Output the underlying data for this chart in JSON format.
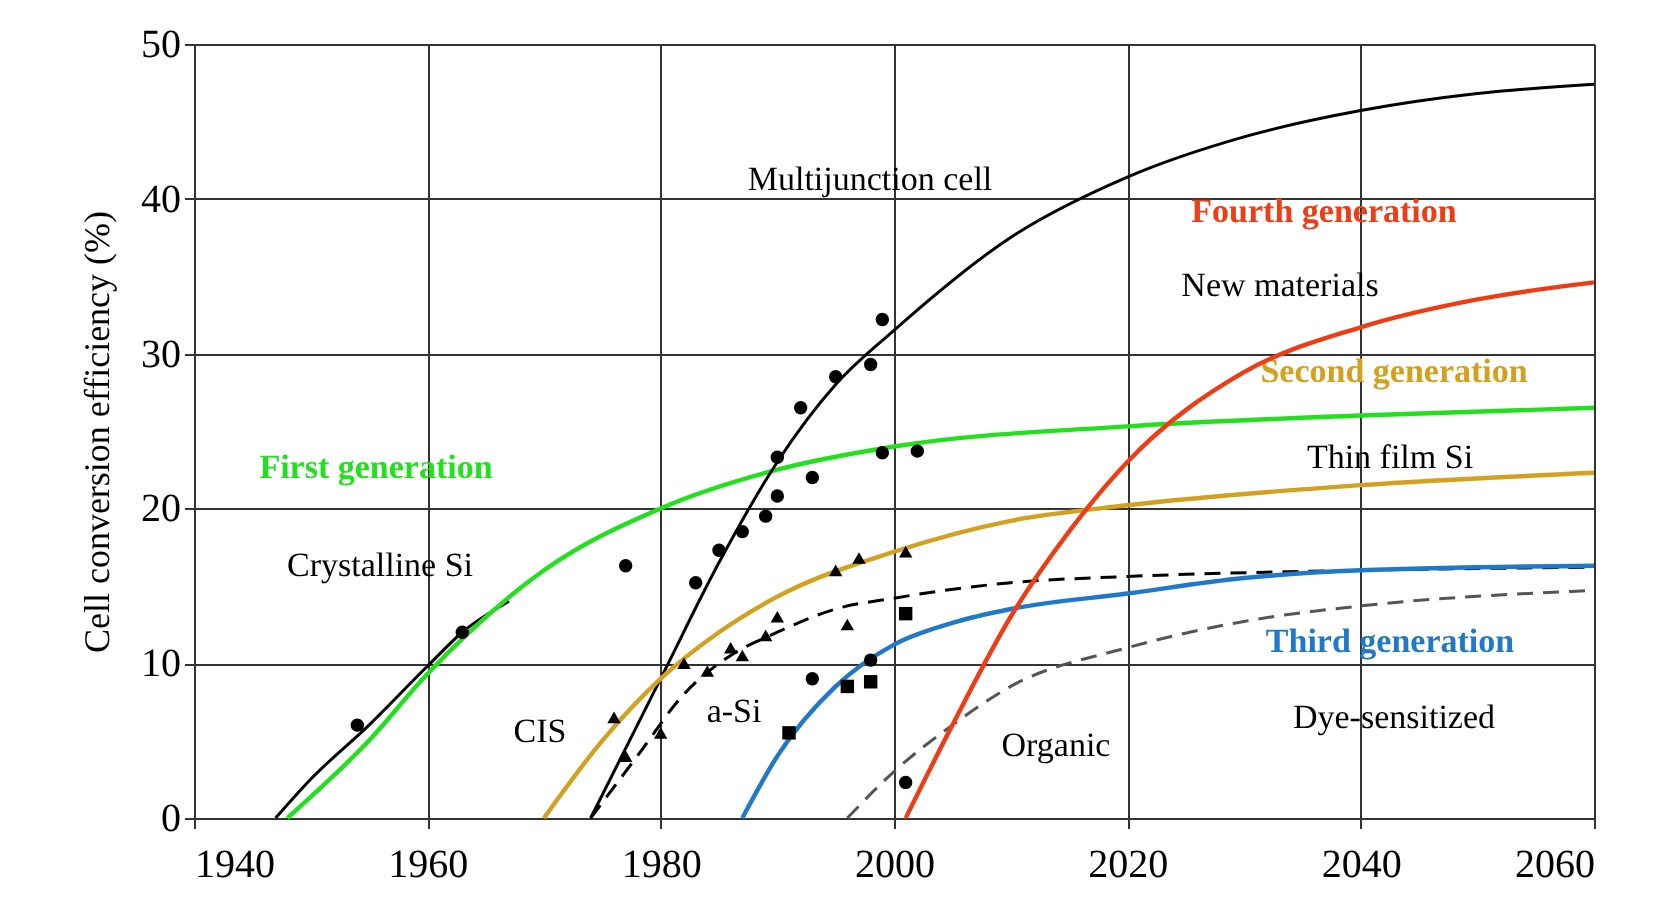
{
  "chart_data": {
    "type": "line",
    "ylabel": "Cell conversion efficiency (%)",
    "xlim": [
      1940,
      2060
    ],
    "ylim": [
      0,
      50
    ],
    "xticks": [
      1940,
      1960,
      1980,
      2000,
      2020,
      2040,
      2060
    ],
    "yticks": [
      0,
      10,
      20,
      30,
      40,
      50
    ],
    "grid": true,
    "series": [
      {
        "color": "#000000",
        "line_style": "solid",
        "marker": "none",
        "x": [
          1947,
          1950,
          1955,
          1960,
          1963,
          1967
        ],
        "values": [
          0,
          2.5,
          6,
          9.8,
          12,
          14
        ]
      },
      {
        "name": "First generation",
        "color": "#22e01e",
        "line_style": "solid",
        "marker": "none",
        "x": [
          1948,
          1955,
          1960,
          1970,
          1980,
          1990,
          2000,
          2020,
          2040,
          2060
        ],
        "values": [
          0,
          5,
          9.3,
          16,
          20,
          22.5,
          24,
          25.3,
          26,
          26.5
        ]
      },
      {
        "color": "#000000",
        "line_style": "solid",
        "marker": "none",
        "x": [
          1974,
          1980,
          1985,
          1990,
          1995,
          2000,
          2010,
          2020,
          2030,
          2040,
          2050,
          2060
        ],
        "values": [
          0,
          9,
          16.5,
          23,
          28,
          31.5,
          37.5,
          41.4,
          44,
          45.7,
          46.8,
          47.4
        ]
      },
      {
        "name": "Second generation",
        "color": "#d4a020",
        "line_style": "solid",
        "marker": "none",
        "x": [
          1970,
          1975,
          1980,
          1985,
          1990,
          2000,
          2010,
          2020,
          2040,
          2060
        ],
        "values": [
          0,
          5,
          9,
          12,
          14.3,
          17.2,
          19.2,
          20.2,
          21.5,
          22.3
        ]
      },
      {
        "color": "#000000",
        "line_style": "dashed",
        "marker": "none",
        "x": [
          1974,
          1978,
          1982,
          1986,
          1990,
          1995,
          2000,
          2010,
          2020,
          2040,
          2060
        ],
        "values": [
          0,
          4,
          8,
          10.5,
          12,
          13.5,
          14.2,
          15.2,
          15.6,
          16,
          16.2
        ]
      },
      {
        "name": "Third generation",
        "color": "#1f78c8",
        "line_style": "solid",
        "marker": "none",
        "x": [
          1987,
          1990,
          1995,
          2000,
          2005,
          2010,
          2020,
          2030,
          2040,
          2060
        ],
        "values": [
          0,
          4,
          8.5,
          11.2,
          12.6,
          13.5,
          14.5,
          15.5,
          16,
          16.3
        ]
      },
      {
        "color": "#555555",
        "line_style": "dashed",
        "marker": "none",
        "x": [
          1996,
          2000,
          2005,
          2010,
          2020,
          2030,
          2040,
          2060
        ],
        "values": [
          0,
          3,
          6,
          8.5,
          11,
          12.7,
          13.7,
          14.7
        ]
      },
      {
        "name": "Fourth generation",
        "color": "#f03c14",
        "line_style": "solid",
        "marker": "none",
        "x": [
          2001,
          2005,
          2010,
          2015,
          2020,
          2030,
          2040,
          2050,
          2060
        ],
        "values": [
          0,
          6,
          13,
          18.5,
          23,
          28.8,
          31.7,
          33.5,
          34.6
        ]
      },
      {
        "type": "scatter",
        "color": "#000000",
        "marker": "circle",
        "x": [
          1954,
          1963,
          1977,
          1985,
          1990,
          1993,
          1999,
          2002,
          2001
        ],
        "values": [
          6,
          12,
          16.3,
          17.3,
          20.8,
          22,
          23.6,
          23.7,
          2.3
        ]
      },
      {
        "type": "scatter",
        "color": "#000000",
        "marker": "circle",
        "x": [
          1983,
          1987,
          1989,
          1990,
          1992,
          1995,
          1998,
          1999,
          1993,
          1998
        ],
        "values": [
          15.2,
          18.5,
          19.5,
          23.3,
          26.5,
          28.5,
          29.3,
          32.2,
          9,
          10.2
        ]
      },
      {
        "type": "scatter",
        "color": "#000000",
        "marker": "triangle",
        "x": [
          1976,
          1982,
          1986,
          1990,
          1995,
          1997,
          2001
        ],
        "values": [
          6.5,
          10,
          11,
          13,
          16,
          16.8,
          17.2
        ]
      },
      {
        "type": "scatter",
        "color": "#000000",
        "marker": "triangle",
        "x": [
          1977,
          1980,
          1984,
          1987,
          1989,
          1996
        ],
        "values": [
          4,
          5.5,
          9.5,
          10.5,
          11.8,
          12.5
        ]
      },
      {
        "type": "scatter",
        "color": "#000000",
        "marker": "square",
        "x": [
          1991,
          1996,
          1998,
          2001
        ],
        "values": [
          5.5,
          8.5,
          8.8,
          13.2
        ]
      }
    ],
    "annotations": [
      "Multijunction cell",
      "Crystalline Si",
      "CIS",
      "a-Si",
      "Organic",
      "New materials",
      "Thin film Si",
      "Dye-sensitized"
    ]
  }
}
